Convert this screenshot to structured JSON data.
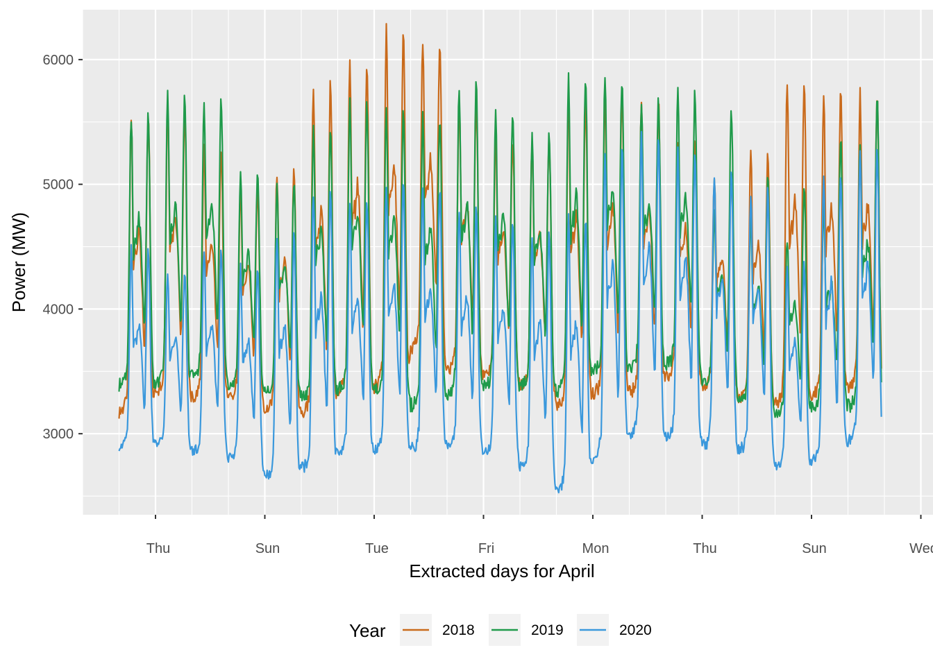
{
  "chart_data": {
    "type": "line",
    "xlabel": "Extracted days for April",
    "ylabel": "Power (MW)",
    "x_tick_labels": [
      "Thu",
      "Sun",
      "Tue",
      "Fri",
      "Mon",
      "Thu",
      "Sun",
      "Wed"
    ],
    "y_ticks": [
      3000,
      4000,
      5000,
      6000
    ],
    "ylim": [
      2350,
      6400
    ],
    "days_shown": 21,
    "grid": true,
    "legend": {
      "title": "Year",
      "placement": "bottom"
    },
    "series": [
      {
        "name": "2018",
        "color": "#c96a1b",
        "daily_min": [
          3180,
          3350,
          3290,
          3300,
          3190,
          3160,
          3350,
          3380,
          3690,
          3520,
          3460,
          3390,
          3230,
          3330,
          3340,
          3460,
          3380,
          3290,
          3250,
          3320,
          3370
        ],
        "daily_peak": [
          5560,
          5600,
          5290,
          4960,
          5100,
          5800,
          6000,
          6220,
          6130,
          5670,
          5370,
          5340,
          5680,
          5750,
          5690,
          5380,
          5050,
          5260,
          5850,
          5720,
          5720
        ]
      },
      {
        "name": "2019",
        "color": "#1f9a4a",
        "daily_min": [
          3390,
          3400,
          3460,
          3380,
          3340,
          3290,
          3360,
          3350,
          3230,
          3330,
          3380,
          3390,
          3350,
          3510,
          3540,
          3560,
          3420,
          3260,
          3170,
          3220,
          3230
        ],
        "daily_peak": [
          5550,
          5700,
          5660,
          5100,
          5000,
          5460,
          5650,
          5600,
          5530,
          5800,
          5590,
          5400,
          5870,
          5860,
          5690,
          5730,
          5590,
          5050,
          5020,
          5390,
          5740
        ],
        "daily_first_peak": [
          5550,
          5700,
          5660,
          5100,
          5000,
          5460,
          5650,
          5600,
          5530,
          5800,
          5590,
          5400,
          5870,
          5860,
          5690,
          5730,
          4770,
          4720,
          4560,
          4810,
          5340
        ]
      },
      {
        "name": "2020",
        "color": "#3a98dc",
        "daily_min": [
          2900,
          2920,
          2860,
          2810,
          2660,
          2730,
          2840,
          2880,
          2880,
          2900,
          2850,
          2740,
          2560,
          2820,
          3010,
          2980,
          2900,
          2880,
          2740,
          2790,
          2950
        ],
        "daily_peak": [
          4480,
          4300,
          4490,
          4330,
          4600,
          4950,
          4870,
          5000,
          4970,
          4810,
          4720,
          4600,
          4710,
          5290,
          5380,
          5260,
          5100,
          4950,
          4360,
          5080,
          5250
        ]
      }
    ]
  }
}
